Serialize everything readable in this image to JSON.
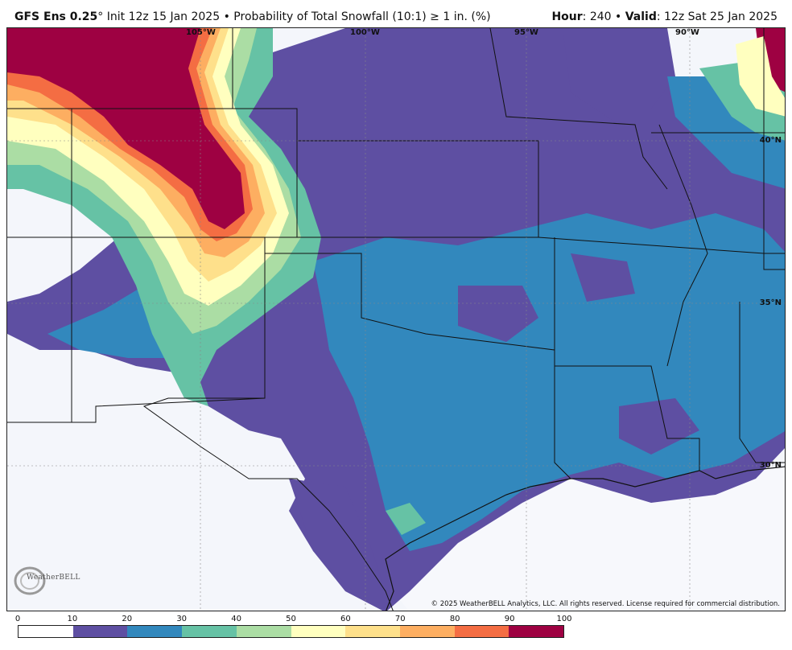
{
  "header": {
    "model": "GFS Ens 0.25",
    "degree": "°",
    "init": "Init 12z 15 Jan 2025",
    "bullet": "•",
    "product": "Probability of Total Snowfall (10:1) ≥ 1 in. (%)",
    "hour_label": "Hour",
    "hour_value": ": 240",
    "valid_label": "Valid",
    "valid_value": ": 12z Sat 25 Jan 2025"
  },
  "map": {
    "lon_labels": [
      "105°W",
      "100°W",
      "95°W",
      "90°W"
    ],
    "lat_labels": [
      "40°N",
      "35°N",
      "30°N"
    ],
    "copyright": "© 2025 WeatherBELL Analytics, LLC. All rights reserved. License required for commercial distribution.",
    "logo_text": "WeatherBELL"
  },
  "legend": {
    "ticks": [
      "0",
      "10",
      "20",
      "30",
      "40",
      "50",
      "60",
      "70",
      "80",
      "90",
      "100"
    ],
    "colors": [
      "#ffffff",
      "#5e4fa2",
      "#3288bd",
      "#66c2a5",
      "#abdda4",
      "#ffffbf",
      "#fee08b",
      "#fdae61",
      "#f46d43",
      "#9e0142"
    ]
  }
}
